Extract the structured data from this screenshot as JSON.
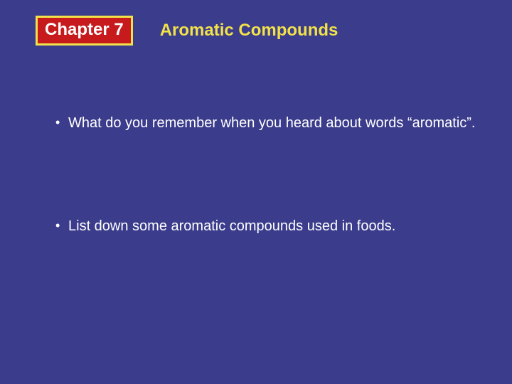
{
  "slide": {
    "background_color": "#3b3c8c",
    "chapter_badge": {
      "text": "Chapter  7",
      "bg_color": "#c61a1c",
      "border_color": "#f2e24a",
      "text_color": "#ffffff"
    },
    "title": {
      "text": "Aromatic Compounds",
      "color": "#f2e24a"
    },
    "bullets": [
      "What do you remember when you heard about words “aromatic”.",
      "List down some aromatic compounds used in foods."
    ],
    "bullet_color": "#ffffff",
    "bullet_text_color": "#ffffff",
    "body_fontsize": 20
  }
}
